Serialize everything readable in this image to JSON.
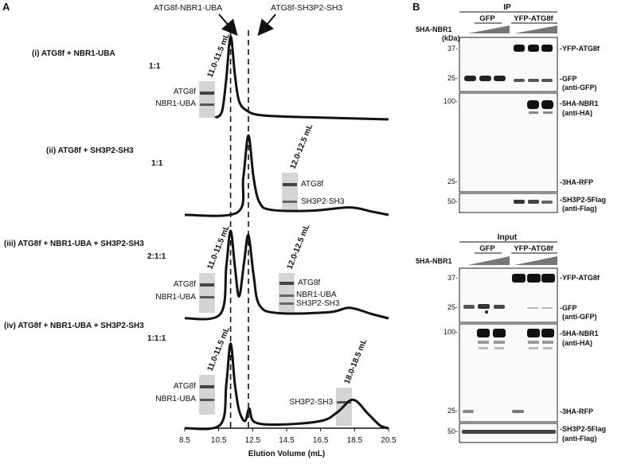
{
  "panelA": {
    "label": "A",
    "arrow_left": "ATG8f-NBR1-UBA",
    "arrow_right": "ATG8f-SH3P2-SH3",
    "conditions": [
      {
        "line1": "(i) ATG8f + NBR1-UBA",
        "ratio": "1:1",
        "gel_bands": [
          "ATG8f",
          "NBR1-UBA"
        ],
        "fraction": "11.0-11.5 mL"
      },
      {
        "line1": "(ii) ATG8f + SH3P2-SH3",
        "ratio": "1:1",
        "gel_bands": [
          "ATG8f",
          "SH3P2-SH3"
        ],
        "fraction": "12.0-12.5 mL"
      },
      {
        "line1": "(iii) ATG8f + NBR1-UBA + SH3P2-SH3",
        "ratio": "2:1:1",
        "gel1_bands": [
          "ATG8f",
          "NBR1-UBA"
        ],
        "fraction1": "11.0-11.5 mL",
        "gel2_bands": [
          "ATG8f",
          "NBR1-UBA",
          "SH3P2-SH3"
        ],
        "fraction2": "12.0-12.5 mL"
      },
      {
        "line1": "(iv) ATG8f + NBR1-UBA + SH3P2-SH3",
        "ratio": "1:1:1",
        "gel1_bands": [
          "ATG8f",
          "NBR1-UBA"
        ],
        "fraction1": "11.0-11.5 mL",
        "gel2_bands": [
          "SH3P2-SH3"
        ],
        "fraction2": "18.0-18.5 mL"
      }
    ]
  },
  "chart_data": {
    "type": "line",
    "xlabel": "Elution Volume (mL)",
    "xlim": [
      8.5,
      20.5
    ],
    "ticks": [
      "8.5",
      "10.5",
      "12.5",
      "14.5",
      "16.5",
      "18.5",
      "20.5"
    ],
    "dashed_lines_x": [
      11.2,
      12.25
    ],
    "series": [
      {
        "points": [
          [
            10.3,
            0.02
          ],
          [
            10.7,
            0.1
          ],
          [
            10.95,
            0.5
          ],
          [
            11.2,
            1.0
          ],
          [
            11.45,
            0.55
          ],
          [
            11.7,
            0.22
          ],
          [
            12.2,
            0.1
          ],
          [
            13,
            0.05
          ],
          [
            15,
            0.03
          ],
          [
            20.5,
            0.0
          ]
        ]
      },
      {
        "points": [
          [
            8.5,
            0.0
          ],
          [
            11.6,
            0.03
          ],
          [
            11.95,
            0.45
          ],
          [
            12.25,
            0.95
          ],
          [
            12.55,
            0.45
          ],
          [
            12.9,
            0.15
          ],
          [
            13.6,
            0.06
          ],
          [
            16,
            0.05
          ],
          [
            18.2,
            0.09
          ],
          [
            19.5,
            0.04
          ],
          [
            20.5,
            0.0
          ]
        ]
      },
      {
        "points": [
          [
            8.5,
            0.0
          ],
          [
            10.6,
            0.05
          ],
          [
            10.95,
            0.6
          ],
          [
            11.2,
            1.0
          ],
          [
            11.45,
            0.6
          ],
          [
            11.7,
            0.25
          ],
          [
            12.0,
            0.65
          ],
          [
            12.25,
            0.95
          ],
          [
            12.55,
            0.5
          ],
          [
            12.9,
            0.15
          ],
          [
            14,
            0.06
          ],
          [
            17,
            0.07
          ],
          [
            18.2,
            0.12
          ],
          [
            19.5,
            0.05
          ],
          [
            20.5,
            0.0
          ]
        ]
      },
      {
        "points": [
          [
            8.5,
            0.0
          ],
          [
            10.6,
            0.04
          ],
          [
            10.95,
            0.5
          ],
          [
            11.2,
            0.95
          ],
          [
            11.45,
            0.5
          ],
          [
            11.7,
            0.2
          ],
          [
            12.05,
            0.08
          ],
          [
            12.3,
            0.22
          ],
          [
            12.6,
            0.07
          ],
          [
            14,
            0.04
          ],
          [
            16.5,
            0.08
          ],
          [
            17.5,
            0.18
          ],
          [
            18.4,
            0.32
          ],
          [
            19.3,
            0.16
          ],
          [
            20.0,
            0.03
          ],
          [
            20.5,
            0.0
          ]
        ]
      }
    ]
  },
  "panelB": {
    "label": "B",
    "ip": {
      "title": "IP",
      "row_label": "5HA-NBR1",
      "groups": [
        "GFP",
        "YFP-ATG8f"
      ],
      "unit": "(kDa)",
      "markers": [
        "37-",
        "25-",
        "100-",
        "25-",
        "50-"
      ],
      "bands": [
        "-YFP-ATG8f",
        "-GFP",
        "(anti-GFP)",
        "-5HA-NBR1",
        "(anti-HA)",
        "-3HA-RFP",
        "-SH3P2-5Flag",
        "(anti-Flag)"
      ]
    },
    "input": {
      "title": "Input",
      "row_label": "5HA-NBR1",
      "groups": [
        "GFP",
        "YFP-ATG8f"
      ],
      "markers": [
        "37-",
        "25-",
        "100-",
        "25-",
        "50-"
      ],
      "bands": [
        "-YFP-ATG8f",
        "-GFP",
        "(anti-GFP)",
        "-5HA-NBR1",
        "(anti-HA)",
        "-3HA-RFP",
        "-SH3P2-5Flag",
        "(anti-Flag)"
      ]
    }
  }
}
